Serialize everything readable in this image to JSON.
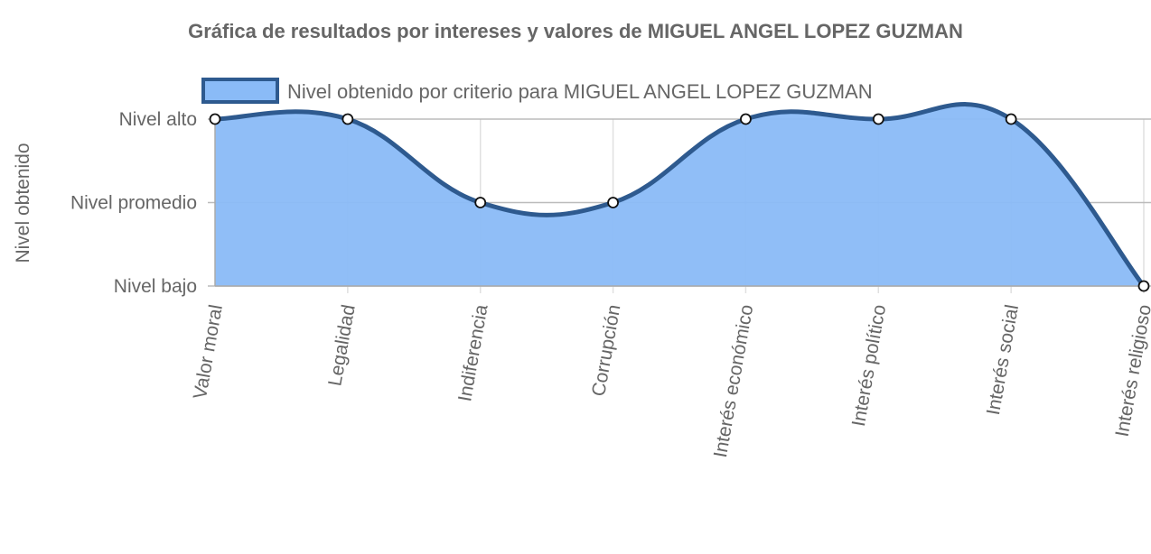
{
  "chart_data": {
    "type": "area",
    "title": "Gráfica de resultados por intereses y valores de MIGUEL ANGEL LOPEZ GUZMAN",
    "ylabel": "Nivel obtenido",
    "xlabel": "",
    "categories": [
      "Valor moral",
      "Legalidad",
      "Indiferencia",
      "Corrupción",
      "Interés económico",
      "Interés político",
      "Interés social",
      "Interés religioso"
    ],
    "y_tick_labels": [
      "Nivel bajo",
      "Nivel promedio",
      "Nivel alto"
    ],
    "y_tick_values": [
      1,
      2,
      3
    ],
    "ylim": [
      1,
      3
    ],
    "series": [
      {
        "name": "Nivel obtenido por criterio para MIGUEL ANGEL LOPEZ GUZMAN",
        "values": [
          3,
          3,
          2,
          2,
          3,
          3,
          3,
          1
        ]
      }
    ],
    "legend_position": "top",
    "grid": true,
    "colors": {
      "fill": "#8abbf7",
      "line": "#2e5a8f",
      "grid": "#e0e0e0",
      "axis": "#aaaaaa",
      "text": "#666666"
    }
  }
}
